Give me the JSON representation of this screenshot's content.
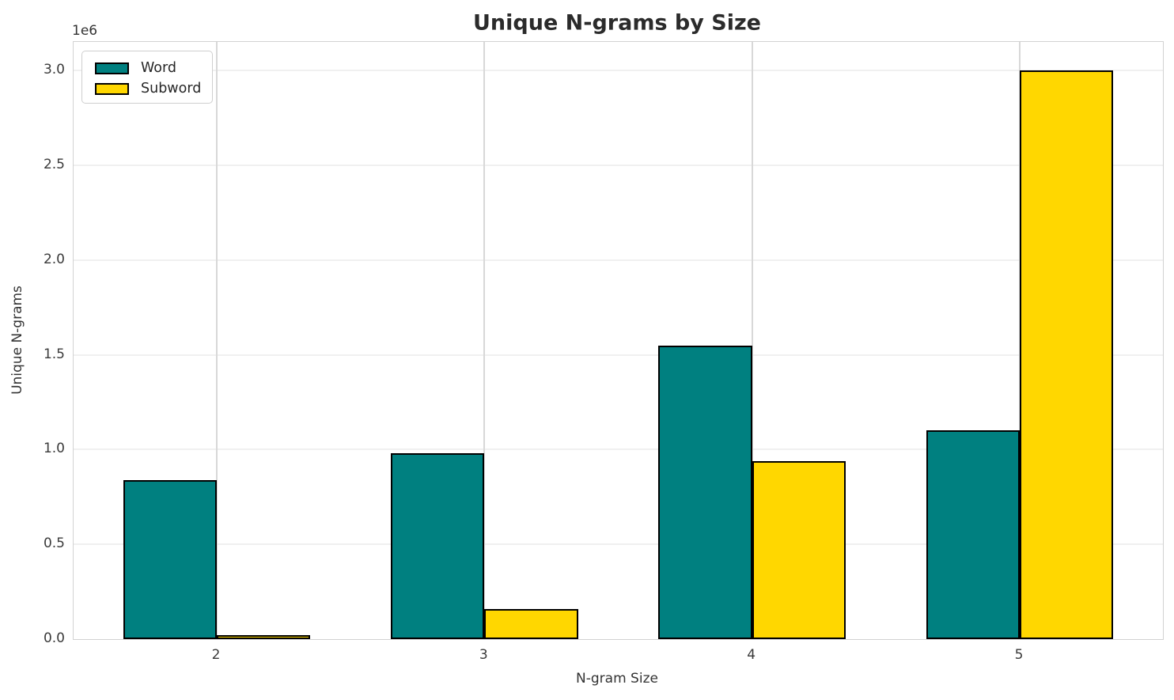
{
  "chart_data": {
    "type": "bar",
    "title": "Unique N-grams by Size",
    "xlabel": "N-gram Size",
    "ylabel": "Unique N-grams",
    "y_offset_label": "1e6",
    "categories": [
      "2",
      "3",
      "4",
      "5"
    ],
    "series": [
      {
        "name": "Word",
        "color": "#008080",
        "values": [
          840000,
          980000,
          1550000,
          1100000
        ]
      },
      {
        "name": "Subword",
        "color": "#FFD700",
        "values": [
          20000,
          160000,
          940000,
          3000000
        ]
      }
    ],
    "bar_edge_color": "#000000",
    "bar_width_fraction": 0.35,
    "ylim": [
      0,
      3150000
    ],
    "yticks": [
      {
        "value": 0,
        "label": "0.0"
      },
      {
        "value": 500000,
        "label": "0.5"
      },
      {
        "value": 1000000,
        "label": "1.0"
      },
      {
        "value": 1500000,
        "label": "1.5"
      },
      {
        "value": 2000000,
        "label": "2.0"
      },
      {
        "value": 2500000,
        "label": "2.5"
      },
      {
        "value": 3000000,
        "label": "3.0"
      }
    ],
    "grid": true,
    "legend_position": "upper left",
    "colors": {
      "horizontal_grid": "#f0f0f0",
      "vertical_grid": "#d8d8d8",
      "spine": "#d2d2d2",
      "text": "#333333"
    }
  }
}
